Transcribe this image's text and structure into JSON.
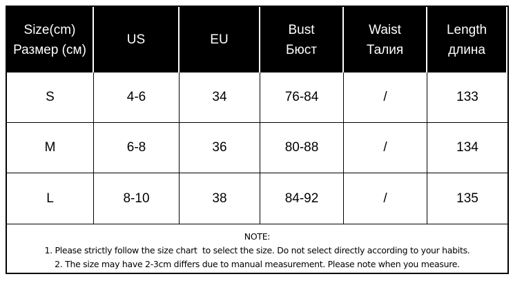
{
  "headers": [
    {
      "line1": "Size(cm)",
      "line2": "Размер (см)"
    },
    {
      "line1": "US",
      "line2": ""
    },
    {
      "line1": "EU",
      "line2": ""
    },
    {
      "line1": "Bust",
      "line2": "Бюст"
    },
    {
      "line1": "Waist",
      "line2": "Талия"
    },
    {
      "line1": "Length",
      "line2": "длина"
    }
  ],
  "rows": [
    [
      "S",
      "4-6",
      "34",
      "76-84",
      "/",
      "133"
    ],
    [
      "M",
      "6-8",
      "36",
      "80-88",
      "/",
      "134"
    ],
    [
      "L",
      "8-10",
      "38",
      "84-92",
      "/",
      "135"
    ]
  ],
  "note": {
    "title": "NOTE:",
    "lines": [
      "1. Please strictly follow the size chart  to select the size. Do not select directly according to your habits.",
      "2. The size may have 2-3cm differs due to manual measurement. Please note when you measure."
    ]
  }
}
